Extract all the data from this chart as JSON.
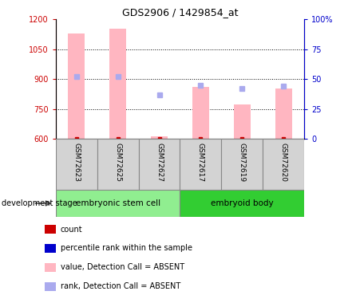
{
  "title": "GDS2906 / 1429854_at",
  "samples": [
    "GSM72623",
    "GSM72625",
    "GSM72627",
    "GSM72617",
    "GSM72619",
    "GSM72620"
  ],
  "groups": [
    {
      "label": "embryonic stem cell",
      "indices": [
        0,
        1,
        2
      ],
      "color": "#90ee90"
    },
    {
      "label": "embryoid body",
      "indices": [
        3,
        4,
        5
      ],
      "color": "#32cd32"
    }
  ],
  "bar_values": [
    1130,
    1155,
    615,
    860,
    775,
    855
  ],
  "bar_color": "#ffb6c1",
  "bar_width": 0.4,
  "bar_bottom": 600,
  "ylim_left": [
    600,
    1200
  ],
  "ylim_right": [
    0,
    100
  ],
  "yticks_left": [
    600,
    750,
    900,
    1050,
    1200
  ],
  "yticks_right": [
    0,
    25,
    50,
    75,
    100
  ],
  "rank_values": [
    52,
    52,
    37,
    45,
    42,
    44
  ],
  "rank_color": "#aaaaee",
  "left_axis_color": "#cc0000",
  "right_axis_color": "#0000cc",
  "dev_stage_label": "development stage",
  "legend_items": [
    {
      "color": "#cc0000",
      "label": "count"
    },
    {
      "color": "#0000cc",
      "label": "percentile rank within the sample"
    },
    {
      "color": "#ffb6c1",
      "label": "value, Detection Call = ABSENT"
    },
    {
      "color": "#aaaaee",
      "label": "rank, Detection Call = ABSENT"
    }
  ],
  "gray_box_color": "#d3d3d3",
  "sample_box_edge": "#888888",
  "group_box_edge": "#888888"
}
